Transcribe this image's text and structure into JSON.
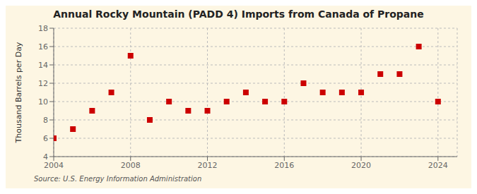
{
  "chart_data": {
    "type": "scatter",
    "title": "Annual Rocky Mountain (PADD 4) Imports from Canada of Propane",
    "ylabel": "Thousand Barrels per Day",
    "annotations": [
      "Source: U.S. Energy Information Administration"
    ],
    "x": [
      2004,
      2005,
      2006,
      2007,
      2008,
      2009,
      2010,
      2011,
      2012,
      2013,
      2014,
      2015,
      2016,
      2017,
      2018,
      2019,
      2020,
      2021,
      2022,
      2023,
      2024
    ],
    "values": [
      6,
      7,
      9,
      11,
      15,
      8,
      10,
      9,
      9,
      10,
      11,
      10,
      10,
      12,
      11,
      11,
      11,
      13,
      13,
      16,
      10
    ],
    "xlim": [
      2004,
      2025
    ],
    "ylim": [
      4,
      18
    ],
    "xticks": [
      2004,
      2008,
      2012,
      2016,
      2020,
      2024
    ],
    "yticks": [
      4,
      6,
      8,
      10,
      12,
      14,
      16,
      18
    ],
    "color": "#cc0000",
    "marker": "square",
    "grid": true
  }
}
